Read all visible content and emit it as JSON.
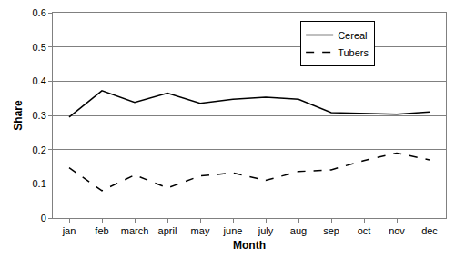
{
  "chart_data": {
    "type": "line",
    "x_label": "Month",
    "y_label": "Share",
    "categories": [
      "jan",
      "feb",
      "march",
      "april",
      "may",
      "june",
      "july",
      "aug",
      "sep",
      "oct",
      "nov",
      "dec"
    ],
    "series": [
      {
        "name": "Cereal",
        "color": "#000000",
        "line_style": "solid",
        "values": [
          0.295,
          0.372,
          0.338,
          0.365,
          0.335,
          0.347,
          0.353,
          0.347,
          0.308,
          0.306,
          0.303,
          0.31
        ]
      },
      {
        "name": "Tubers",
        "color": "#000000",
        "line_style": "dash",
        "values": [
          0.147,
          0.08,
          0.126,
          0.088,
          0.123,
          0.132,
          0.11,
          0.136,
          0.141,
          0.168,
          0.19,
          0.17
        ]
      }
    ],
    "ylim": [
      0,
      0.6
    ],
    "yticks": [
      0,
      0.1,
      0.2,
      0.3,
      0.4,
      0.5,
      0.6
    ],
    "grid": true,
    "legend": "top right"
  }
}
